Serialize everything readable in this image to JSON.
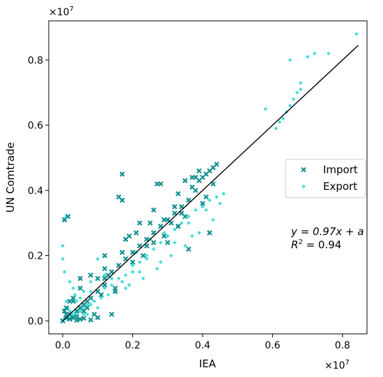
{
  "chart_data": {
    "type": "scatter",
    "xlabel": "IEA",
    "ylabel": "UN Comtrade",
    "x_multiplier": "×10",
    "y_multiplier": "×10",
    "multiplier_exponent": "7",
    "xlim": [
      -0.04,
      0.87
    ],
    "ylim": [
      -0.04,
      0.92
    ],
    "x_ticks": [
      "0.0",
      "0.2",
      "0.4",
      "0.6",
      "0.8"
    ],
    "y_ticks": [
      "0.0",
      "0.2",
      "0.4",
      "0.6",
      "0.8"
    ],
    "grid": false,
    "legend_position": "center-right",
    "colors": {
      "import": "#138f8f",
      "export": "#46ddd6",
      "fit": "#000000"
    },
    "fit_line": {
      "slope": 0.97,
      "x": [
        0.0,
        0.845
      ],
      "y": [
        0.0,
        0.845
      ]
    },
    "annotation": {
      "eq_main": "y = 0.97x + a",
      "r2_prefix": "R",
      "r2_sup": "2",
      "r2_rest": " = 0.94"
    },
    "series": [
      {
        "name": "Import",
        "marker": "x",
        "x": [
          0.0,
          0.01,
          0.02,
          0.03,
          0.04,
          0.05,
          0.06,
          0.07,
          0.08,
          0.1,
          0.12,
          0.05,
          0.08,
          0.1,
          0.14,
          0.03,
          0.06,
          0.09,
          0.12,
          0.15,
          0.01,
          0.02,
          0.02,
          0.03,
          0.04,
          0.01,
          0.05,
          0.07,
          0.04,
          0.06,
          0.16,
          0.18,
          0.2,
          0.22,
          0.24,
          0.26,
          0.28,
          0.3,
          0.32,
          0.34,
          0.36,
          0.38,
          0.4,
          0.42,
          0.14,
          0.17,
          0.2,
          0.23,
          0.26,
          0.29,
          0.31,
          0.33,
          0.35,
          0.37,
          0.39,
          0.41,
          0.43,
          0.17,
          0.16,
          0.17,
          0.22,
          0.26,
          0.29,
          0.35,
          0.38,
          0.27,
          0.33,
          0.18,
          0.21,
          0.24,
          0.3,
          0.32,
          0.34,
          0.36,
          0.4,
          0.41,
          0.42,
          0.44,
          0.43,
          0.005,
          0.015,
          0.005,
          0.1,
          0.13,
          0.11,
          0.12,
          0.15,
          0.19,
          0.25,
          0.28,
          0.33,
          0.37,
          0.39,
          0.05,
          0.12,
          0.0,
          0.08
        ],
        "y": [
          0.0,
          0.01,
          0.02,
          0.01,
          0.03,
          0.04,
          0.05,
          0.06,
          0.07,
          0.09,
          0.11,
          0.005,
          0.003,
          0.01,
          0.02,
          0.06,
          0.03,
          0.02,
          0.13,
          0.09,
          0.04,
          0.06,
          0.005,
          0.07,
          0.012,
          0.02,
          0.1,
          0.04,
          0.002,
          0.008,
          0.17,
          0.19,
          0.21,
          0.23,
          0.25,
          0.27,
          0.29,
          0.31,
          0.33,
          0.35,
          0.37,
          0.4,
          0.44,
          0.46,
          0.15,
          0.21,
          0.18,
          0.2,
          0.24,
          0.26,
          0.3,
          0.29,
          0.32,
          0.41,
          0.43,
          0.45,
          0.47,
          0.45,
          0.38,
          0.37,
          0.3,
          0.34,
          0.31,
          0.43,
          0.44,
          0.42,
          0.29,
          0.25,
          0.27,
          0.23,
          0.24,
          0.35,
          0.33,
          0.22,
          0.36,
          0.38,
          0.27,
          0.48,
          0.42,
          0.31,
          0.32,
          0.03,
          0.13,
          0.14,
          0.08,
          0.16,
          0.1,
          0.26,
          0.3,
          0.42,
          0.39,
          0.44,
          0.46,
          0.13,
          0.2,
          0.0,
          0.14
        ]
      },
      {
        "name": "Export",
        "marker": "diamond",
        "x": [
          0.0,
          0.01,
          0.02,
          0.03,
          0.04,
          0.05,
          0.06,
          0.07,
          0.08,
          0.09,
          0.11,
          0.13,
          0.02,
          0.04,
          0.06,
          0.08,
          0.1,
          0.12,
          0.01,
          0.03,
          0.05,
          0.07,
          0.005,
          0.015,
          0.025,
          0.035,
          0.045,
          0.14,
          0.16,
          0.18,
          0.2,
          0.22,
          0.24,
          0.26,
          0.28,
          0.3,
          0.32,
          0.34,
          0.36,
          0.38,
          0.4,
          0.42,
          0.44,
          0.46,
          0.15,
          0.19,
          0.23,
          0.27,
          0.31,
          0.35,
          0.39,
          0.43,
          0.45,
          0.21,
          0.25,
          0.29,
          0.33,
          0.37,
          0.41,
          0.17,
          0.2,
          0.24,
          0.28,
          0.32,
          0.36,
          0.4,
          0.005,
          0.01,
          0.0,
          0.02,
          0.03,
          0.0,
          0.005,
          0.58,
          0.61,
          0.62,
          0.63,
          0.64,
          0.65,
          0.66,
          0.67,
          0.68,
          0.7,
          0.72,
          0.76,
          0.84,
          0.65,
          0.68,
          0.1,
          0.12,
          0.08,
          0.06,
          0.14,
          0.18,
          0.22
        ],
        "y": [
          0.0,
          0.005,
          0.01,
          0.02,
          0.02,
          0.03,
          0.04,
          0.05,
          0.05,
          0.06,
          0.07,
          0.08,
          0.03,
          0.06,
          0.02,
          0.09,
          0.04,
          0.1,
          0.06,
          0.015,
          0.07,
          0.02,
          0.01,
          0.04,
          0.005,
          0.08,
          0.03,
          0.11,
          0.13,
          0.14,
          0.15,
          0.18,
          0.19,
          0.22,
          0.24,
          0.26,
          0.28,
          0.3,
          0.32,
          0.34,
          0.36,
          0.37,
          0.38,
          0.39,
          0.09,
          0.11,
          0.13,
          0.16,
          0.2,
          0.23,
          0.27,
          0.31,
          0.36,
          0.21,
          0.25,
          0.27,
          0.29,
          0.26,
          0.34,
          0.12,
          0.17,
          0.2,
          0.18,
          0.24,
          0.3,
          0.35,
          0.31,
          0.32,
          0.23,
          0.12,
          0.1,
          0.19,
          0.15,
          0.65,
          0.59,
          0.61,
          0.62,
          0.64,
          0.66,
          0.68,
          0.7,
          0.71,
          0.81,
          0.82,
          0.82,
          0.88,
          0.8,
          0.73,
          0.19,
          0.14,
          0.12,
          0.09,
          0.13,
          0.1,
          0.15
        ]
      }
    ]
  }
}
